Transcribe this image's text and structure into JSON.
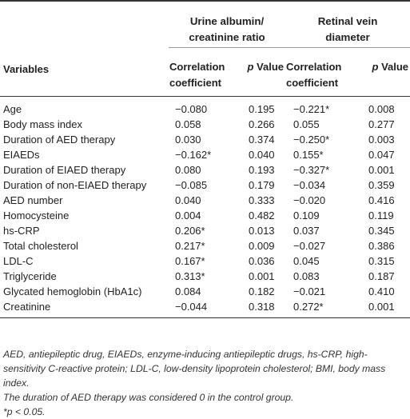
{
  "table": {
    "group_headers": [
      {
        "line1": "Urine albumin/",
        "line2": "creatinine ratio"
      },
      {
        "line1": "Retinal vein",
        "line2": "diameter"
      }
    ],
    "variables_header": "Variables",
    "sub_headers": {
      "correlation_line1": "Correlation",
      "correlation_line2": "coefficient",
      "p_italic": "p",
      "p_rest": " Value"
    },
    "rows": [
      {
        "variable": "Age",
        "uacr_r": "−0.080",
        "uacr_p": "0.195",
        "rvd_r": "−0.221*",
        "rvd_p": "0.008"
      },
      {
        "variable": "Body mass index",
        "uacr_r": "0.058",
        "uacr_p": "0.266",
        "rvd_r": "0.055",
        "rvd_p": "0.277"
      },
      {
        "variable": "Duration of AED therapy",
        "uacr_r": "0.030",
        "uacr_p": "0.374",
        "rvd_r": "−0.250*",
        "rvd_p": "0.003"
      },
      {
        "variable": "EIAEDs",
        "uacr_r": "−0.162*",
        "uacr_p": "0.040",
        "rvd_r": "0.155*",
        "rvd_p": "0.047"
      },
      {
        "variable": "Duration of EIAED therapy",
        "uacr_r": "0.080",
        "uacr_p": "0.193",
        "rvd_r": "−0.327*",
        "rvd_p": "0.001"
      },
      {
        "variable": "Duration of non-EIAED therapy",
        "uacr_r": "−0.085",
        "uacr_p": "0.179",
        "rvd_r": "−0.034",
        "rvd_p": "0.359"
      },
      {
        "variable": "AED number",
        "uacr_r": "0.040",
        "uacr_p": "0.333",
        "rvd_r": "−0.020",
        "rvd_p": "0.416"
      },
      {
        "variable": "Homocysteine",
        "uacr_r": "0.004",
        "uacr_p": "0.482",
        "rvd_r": "0.109",
        "rvd_p": "0.119"
      },
      {
        "variable": "hs-CRP",
        "uacr_r": "0.206*",
        "uacr_p": "0.013",
        "rvd_r": "0.037",
        "rvd_p": "0.345"
      },
      {
        "variable": "Total cholesterol",
        "uacr_r": "0.217*",
        "uacr_p": "0.009",
        "rvd_r": "−0.027",
        "rvd_p": "0.386"
      },
      {
        "variable": "LDL-C",
        "uacr_r": "0.167*",
        "uacr_p": "0.036",
        "rvd_r": "0.045",
        "rvd_p": "0.315"
      },
      {
        "variable": "Triglyceride",
        "uacr_r": "0.313*",
        "uacr_p": "0.001",
        "rvd_r": "0.083",
        "rvd_p": "0.187"
      },
      {
        "variable": "Glycated hemoglobin (HbA1c)",
        "uacr_r": "0.084",
        "uacr_p": "0.182",
        "rvd_r": "−0.021",
        "rvd_p": "0.410"
      },
      {
        "variable": "Creatinine",
        "uacr_r": "−0.044",
        "uacr_p": "0.318",
        "rvd_r": "0.272*",
        "rvd_p": "0.001"
      }
    ]
  },
  "footnotes": {
    "abbreviations": "AED, antiepileptic drug, EIAEDs, enzyme-inducing antiepileptic drugs, hs-CRP, high-sensitivity C-reactive protein; LDL-C, low-density lipoprotein cholesterol; BMI, body mass index.",
    "control_note": "The duration of AED therapy was considered 0 in the control group.",
    "significance": "*p < 0.05."
  }
}
